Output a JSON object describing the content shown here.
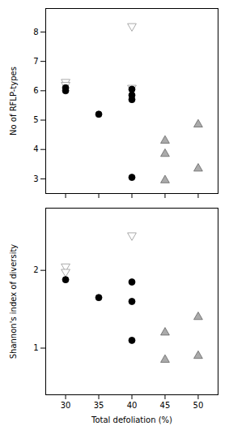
{
  "chart_data": [
    {
      "type": "scatter",
      "ylabel": "No of RFLP-types",
      "xlim": [
        27,
        53
      ],
      "xticks": [
        30,
        35,
        40,
        45,
        50
      ],
      "ylim": [
        2.5,
        8.8
      ],
      "yticks": [
        3,
        4,
        5,
        6,
        7,
        8
      ],
      "tick_labels": "y",
      "series": [
        {
          "marker": "triangle-down",
          "color": "white",
          "x": [
            30,
            30,
            40,
            40
          ],
          "values": [
            6.3,
            6.2,
            8.2,
            6.1
          ]
        },
        {
          "marker": "circle",
          "color": "black",
          "x": [
            30,
            30,
            35,
            40,
            40,
            40,
            40
          ],
          "values": [
            6.1,
            6.0,
            5.2,
            6.05,
            5.85,
            5.7,
            3.05
          ]
        },
        {
          "marker": "triangle-up",
          "color": "#aaaaaa",
          "x": [
            45,
            45,
            45,
            50,
            50
          ],
          "values": [
            4.3,
            3.85,
            2.95,
            4.85,
            3.35
          ]
        }
      ]
    },
    {
      "type": "scatter",
      "ylabel": "Shannon's index of diversity",
      "xlabel": "Total defoliation (%)",
      "xlim": [
        27,
        53
      ],
      "xticks": [
        30,
        35,
        40,
        45,
        50
      ],
      "ylim": [
        0.4,
        2.8
      ],
      "yticks": [
        1,
        2
      ],
      "series": [
        {
          "marker": "triangle-down",
          "color": "white",
          "x": [
            30,
            30,
            40
          ],
          "values": [
            2.05,
            1.98,
            2.45
          ]
        },
        {
          "marker": "circle",
          "color": "black",
          "x": [
            30,
            35,
            40,
            40,
            40
          ],
          "values": [
            1.88,
            1.65,
            1.85,
            1.6,
            1.1
          ]
        },
        {
          "marker": "triangle-up",
          "color": "#aaaaaa",
          "x": [
            45,
            45,
            50,
            50
          ],
          "values": [
            1.2,
            0.85,
            1.4,
            0.9
          ]
        }
      ]
    }
  ]
}
